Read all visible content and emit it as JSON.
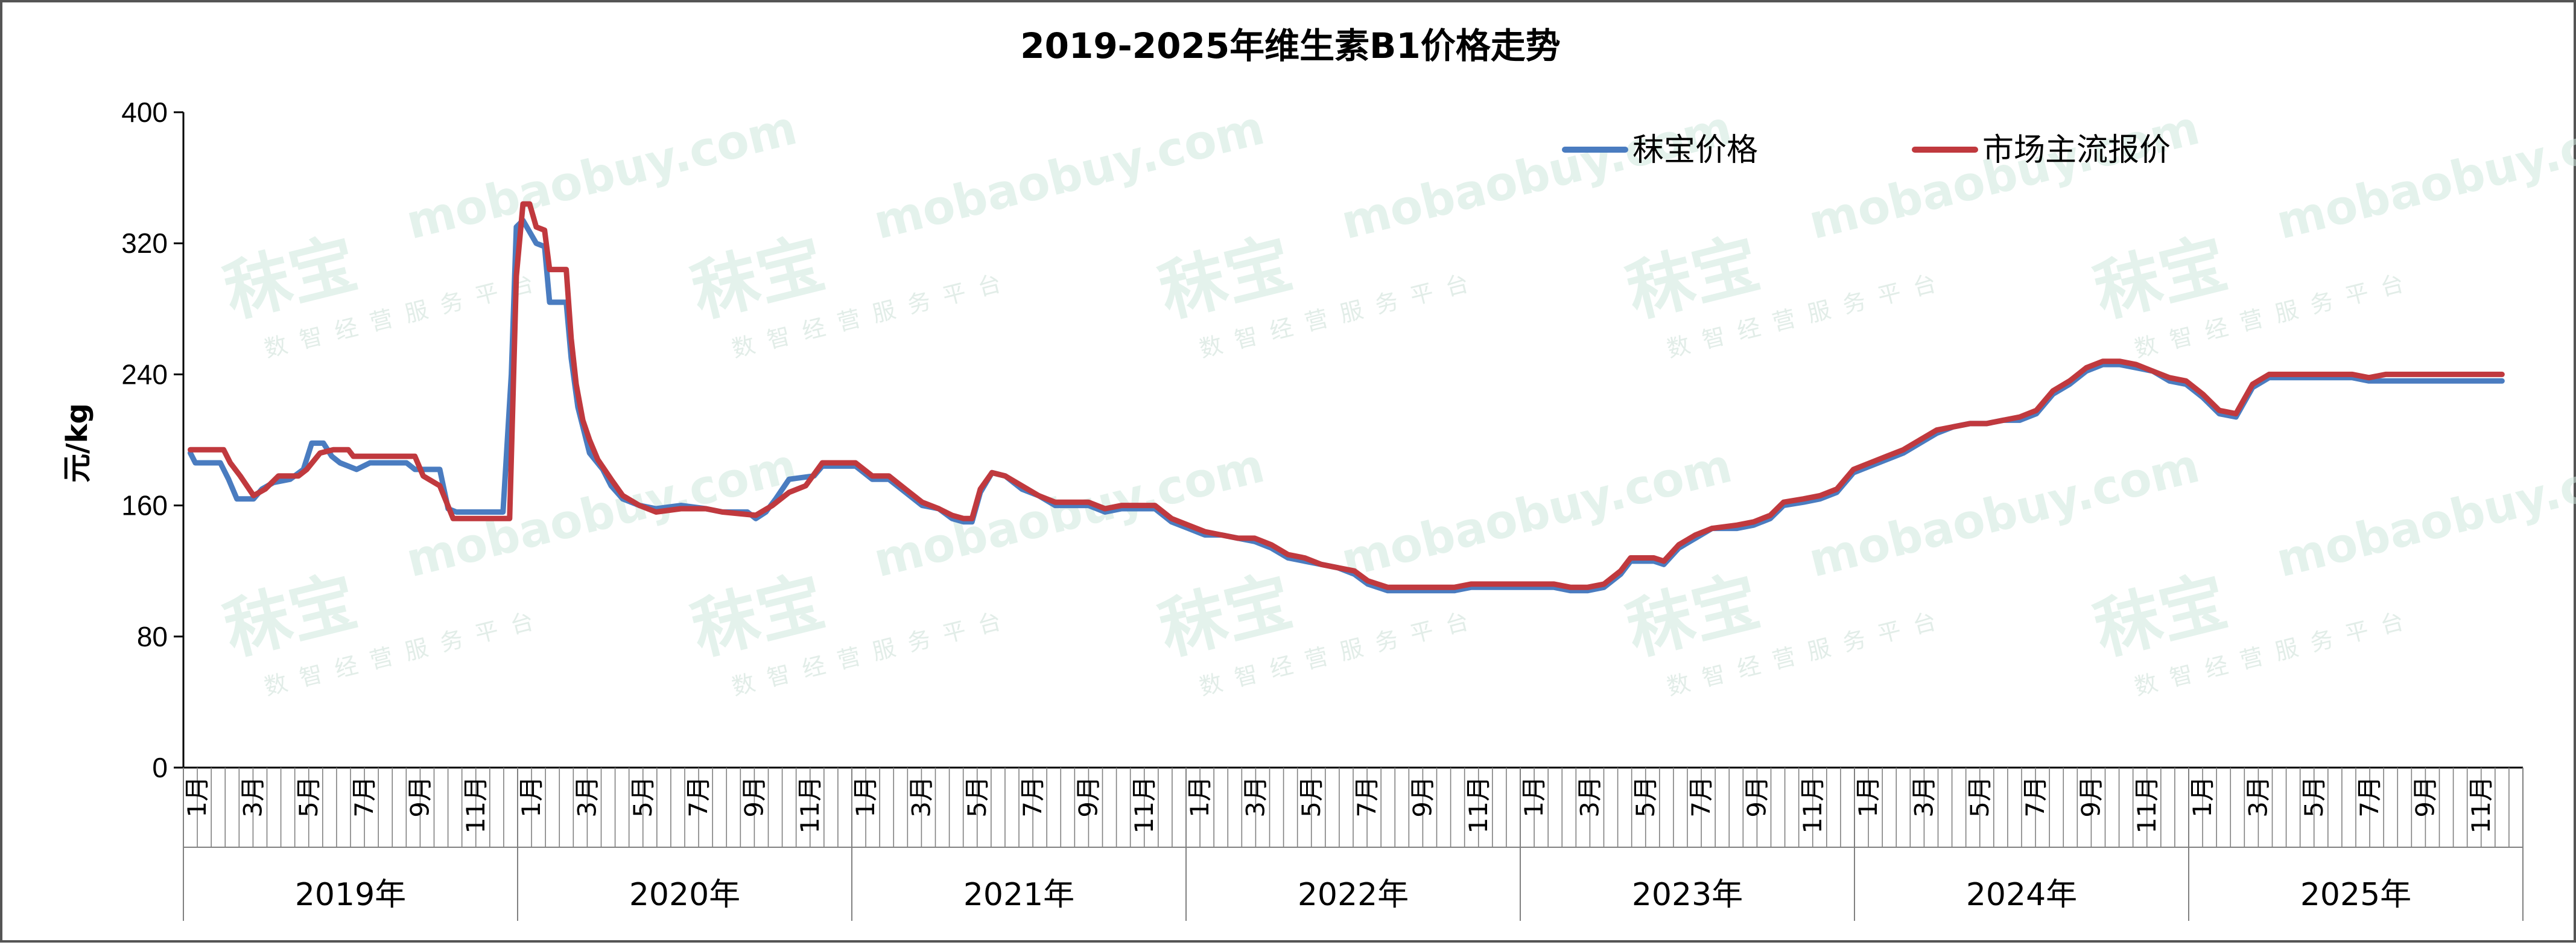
{
  "chart_data": {
    "type": "line",
    "title": "2019-2025年维生素B1价格走势",
    "ylabel": "元/kg",
    "ylim": [
      0,
      400
    ],
    "yticks": [
      0,
      80,
      160,
      240,
      320,
      400
    ],
    "grid": false,
    "legend_position": "top-right",
    "years": [
      "2019年",
      "2020年",
      "2021年",
      "2022年",
      "2023年",
      "2024年",
      "2025年"
    ],
    "month_labels": [
      "1月",
      "3月",
      "5月",
      "7月",
      "9月",
      "11月"
    ],
    "watermark": {
      "brand": "秣宝",
      "url": "mobaobuy.com",
      "tagline": "数智经营服务平台"
    },
    "x_unit": "months since Jan 2019",
    "series": [
      {
        "name": "秣宝价格",
        "color": "#4a7cc0",
        "points": [
          [
            0,
            192
          ],
          [
            0.3,
            186
          ],
          [
            1.8,
            186
          ],
          [
            2.3,
            176
          ],
          [
            2.8,
            164
          ],
          [
            3.8,
            164
          ],
          [
            4.3,
            170
          ],
          [
            5.0,
            174
          ],
          [
            6.0,
            176
          ],
          [
            6.8,
            182
          ],
          [
            7.3,
            198
          ],
          [
            8.0,
            198
          ],
          [
            8.5,
            190
          ],
          [
            9.0,
            186
          ],
          [
            9.5,
            184
          ],
          [
            10.0,
            182
          ],
          [
            10.8,
            186
          ],
          [
            13.0,
            186
          ],
          [
            13.5,
            182
          ],
          [
            15.0,
            182
          ],
          [
            15.5,
            158
          ],
          [
            16.0,
            156
          ],
          [
            18.8,
            156
          ],
          [
            19.3,
            240
          ],
          [
            19.6,
            330
          ],
          [
            20.0,
            334
          ],
          [
            20.8,
            320
          ],
          [
            21.3,
            318
          ],
          [
            21.6,
            284
          ],
          [
            22.6,
            284
          ],
          [
            22.9,
            250
          ],
          [
            23.3,
            220
          ],
          [
            24.0,
            192
          ],
          [
            24.8,
            182
          ],
          [
            25.3,
            172
          ],
          [
            26.0,
            164
          ],
          [
            27.0,
            160
          ],
          [
            28.0,
            158
          ],
          [
            29.5,
            160
          ],
          [
            31.0,
            158
          ],
          [
            32.0,
            156
          ],
          [
            33.5,
            156
          ],
          [
            34.0,
            152
          ],
          [
            34.6,
            156
          ],
          [
            35.2,
            164
          ],
          [
            36.0,
            176
          ],
          [
            37.5,
            178
          ],
          [
            38.0,
            184
          ],
          [
            40.0,
            184
          ],
          [
            41.0,
            176
          ],
          [
            42.0,
            176
          ],
          [
            43.0,
            168
          ],
          [
            44.0,
            160
          ],
          [
            45.0,
            158
          ],
          [
            45.8,
            152
          ],
          [
            46.5,
            150
          ],
          [
            47.0,
            150
          ],
          [
            47.5,
            168
          ],
          [
            48.2,
            180
          ],
          [
            49.0,
            178
          ],
          [
            50.0,
            170
          ],
          [
            51.0,
            166
          ],
          [
            52.0,
            160
          ],
          [
            53.0,
            160
          ],
          [
            54.0,
            160
          ],
          [
            55.0,
            156
          ],
          [
            56.0,
            158
          ],
          [
            58.0,
            158
          ],
          [
            59.0,
            150
          ],
          [
            60.0,
            146
          ],
          [
            61.0,
            142
          ],
          [
            62.0,
            142
          ],
          [
            63.0,
            140
          ],
          [
            64.0,
            138
          ],
          [
            65.0,
            134
          ],
          [
            66.0,
            128
          ],
          [
            67.0,
            126
          ],
          [
            68.0,
            124
          ],
          [
            69.0,
            122
          ],
          [
            70.0,
            118
          ],
          [
            70.8,
            112
          ],
          [
            72.0,
            108
          ],
          [
            75.0,
            108
          ],
          [
            76.0,
            108
          ],
          [
            77.0,
            110
          ],
          [
            80.0,
            110
          ],
          [
            82.0,
            110
          ],
          [
            83.0,
            108
          ],
          [
            84.0,
            108
          ],
          [
            85.0,
            110
          ],
          [
            86.0,
            118
          ],
          [
            86.6,
            126
          ],
          [
            88.0,
            126
          ],
          [
            88.6,
            124
          ],
          [
            89.5,
            134
          ],
          [
            90.5,
            140
          ],
          [
            91.5,
            146
          ],
          [
            93.0,
            146
          ],
          [
            94.0,
            148
          ],
          [
            95.0,
            152
          ],
          [
            95.8,
            160
          ],
          [
            97.0,
            162
          ],
          [
            98.0,
            164
          ],
          [
            99.0,
            168
          ],
          [
            100.0,
            180
          ],
          [
            101.0,
            184
          ],
          [
            102.0,
            188
          ],
          [
            103.0,
            192
          ],
          [
            104.0,
            198
          ],
          [
            105.0,
            204
          ],
          [
            106.0,
            208
          ],
          [
            107.0,
            210
          ],
          [
            108.0,
            210
          ],
          [
            109.0,
            212
          ],
          [
            110.0,
            212
          ],
          [
            111.0,
            216
          ],
          [
            112.0,
            228
          ],
          [
            113.0,
            234
          ],
          [
            114.0,
            242
          ],
          [
            115.0,
            246
          ],
          [
            116.0,
            246
          ],
          [
            117.0,
            244
          ],
          [
            118.0,
            242
          ],
          [
            119.0,
            236
          ],
          [
            120.0,
            234
          ],
          [
            121.0,
            226
          ],
          [
            122.0,
            216
          ],
          [
            123.0,
            214
          ],
          [
            124.0,
            232
          ],
          [
            125.0,
            238
          ],
          [
            128.0,
            238
          ],
          [
            130.0,
            238
          ],
          [
            131.0,
            236
          ],
          [
            132.0,
            236
          ],
          [
            134.0,
            236
          ],
          [
            136.0,
            236
          ],
          [
            139.0,
            236
          ]
        ]
      },
      {
        "name": "市场主流报价",
        "color": "#c0393e",
        "points": [
          [
            0,
            194
          ],
          [
            2.0,
            194
          ],
          [
            2.4,
            186
          ],
          [
            3.0,
            178
          ],
          [
            3.8,
            166
          ],
          [
            4.5,
            170
          ],
          [
            5.3,
            178
          ],
          [
            6.5,
            178
          ],
          [
            7.0,
            182
          ],
          [
            7.8,
            192
          ],
          [
            8.6,
            194
          ],
          [
            9.5,
            194
          ],
          [
            9.8,
            190
          ],
          [
            13.5,
            190
          ],
          [
            14.0,
            178
          ],
          [
            15.0,
            172
          ],
          [
            15.4,
            162
          ],
          [
            15.8,
            152
          ],
          [
            19.2,
            152
          ],
          [
            19.6,
            300
          ],
          [
            20.0,
            344
          ],
          [
            20.4,
            344
          ],
          [
            20.8,
            330
          ],
          [
            21.3,
            328
          ],
          [
            21.6,
            304
          ],
          [
            22.6,
            304
          ],
          [
            22.9,
            262
          ],
          [
            23.2,
            234
          ],
          [
            23.6,
            212
          ],
          [
            24.0,
            200
          ],
          [
            24.5,
            188
          ],
          [
            25.3,
            176
          ],
          [
            26.0,
            166
          ],
          [
            27.0,
            160
          ],
          [
            28.0,
            156
          ],
          [
            29.5,
            158
          ],
          [
            31.0,
            158
          ],
          [
            32.0,
            156
          ],
          [
            34.0,
            154
          ],
          [
            35.0,
            160
          ],
          [
            36.0,
            168
          ],
          [
            37.0,
            172
          ],
          [
            38.0,
            186
          ],
          [
            40.0,
            186
          ],
          [
            41.0,
            178
          ],
          [
            42.0,
            178
          ],
          [
            43.0,
            170
          ],
          [
            44.0,
            162
          ],
          [
            45.0,
            158
          ],
          [
            45.8,
            154
          ],
          [
            46.5,
            152
          ],
          [
            47.0,
            152
          ],
          [
            47.5,
            170
          ],
          [
            48.2,
            180
          ],
          [
            49.0,
            178
          ],
          [
            50.0,
            172
          ],
          [
            51.0,
            166
          ],
          [
            52.0,
            162
          ],
          [
            54.0,
            162
          ],
          [
            55.0,
            158
          ],
          [
            56.0,
            160
          ],
          [
            58.0,
            160
          ],
          [
            59.0,
            152
          ],
          [
            60.0,
            148
          ],
          [
            61.0,
            144
          ],
          [
            62.0,
            142
          ],
          [
            63.0,
            140
          ],
          [
            64.0,
            140
          ],
          [
            65.0,
            136
          ],
          [
            66.0,
            130
          ],
          [
            67.0,
            128
          ],
          [
            68.0,
            124
          ],
          [
            69.0,
            122
          ],
          [
            70.0,
            120
          ],
          [
            70.8,
            114
          ],
          [
            72.0,
            110
          ],
          [
            75.0,
            110
          ],
          [
            76.0,
            110
          ],
          [
            77.0,
            112
          ],
          [
            80.0,
            112
          ],
          [
            82.0,
            112
          ],
          [
            83.0,
            110
          ],
          [
            84.0,
            110
          ],
          [
            85.0,
            112
          ],
          [
            86.0,
            120
          ],
          [
            86.6,
            128
          ],
          [
            88.0,
            128
          ],
          [
            88.6,
            126
          ],
          [
            89.5,
            136
          ],
          [
            90.5,
            142
          ],
          [
            91.5,
            146
          ],
          [
            93.0,
            148
          ],
          [
            94.0,
            150
          ],
          [
            95.0,
            154
          ],
          [
            95.8,
            162
          ],
          [
            97.0,
            164
          ],
          [
            98.0,
            166
          ],
          [
            99.0,
            170
          ],
          [
            100.0,
            182
          ],
          [
            101.0,
            186
          ],
          [
            102.0,
            190
          ],
          [
            103.0,
            194
          ],
          [
            104.0,
            200
          ],
          [
            105.0,
            206
          ],
          [
            106.0,
            208
          ],
          [
            107.0,
            210
          ],
          [
            108.0,
            210
          ],
          [
            109.0,
            212
          ],
          [
            110.0,
            214
          ],
          [
            111.0,
            218
          ],
          [
            112.0,
            230
          ],
          [
            113.0,
            236
          ],
          [
            114.0,
            244
          ],
          [
            115.0,
            248
          ],
          [
            116.0,
            248
          ],
          [
            117.0,
            246
          ],
          [
            118.0,
            242
          ],
          [
            119.0,
            238
          ],
          [
            120.0,
            236
          ],
          [
            121.0,
            228
          ],
          [
            122.0,
            218
          ],
          [
            123.0,
            216
          ],
          [
            124.0,
            234
          ],
          [
            125.0,
            240
          ],
          [
            128.0,
            240
          ],
          [
            130.0,
            240
          ],
          [
            131.0,
            238
          ],
          [
            132.0,
            240
          ],
          [
            134.0,
            240
          ],
          [
            136.0,
            240
          ],
          [
            139.0,
            240
          ]
        ]
      }
    ]
  }
}
